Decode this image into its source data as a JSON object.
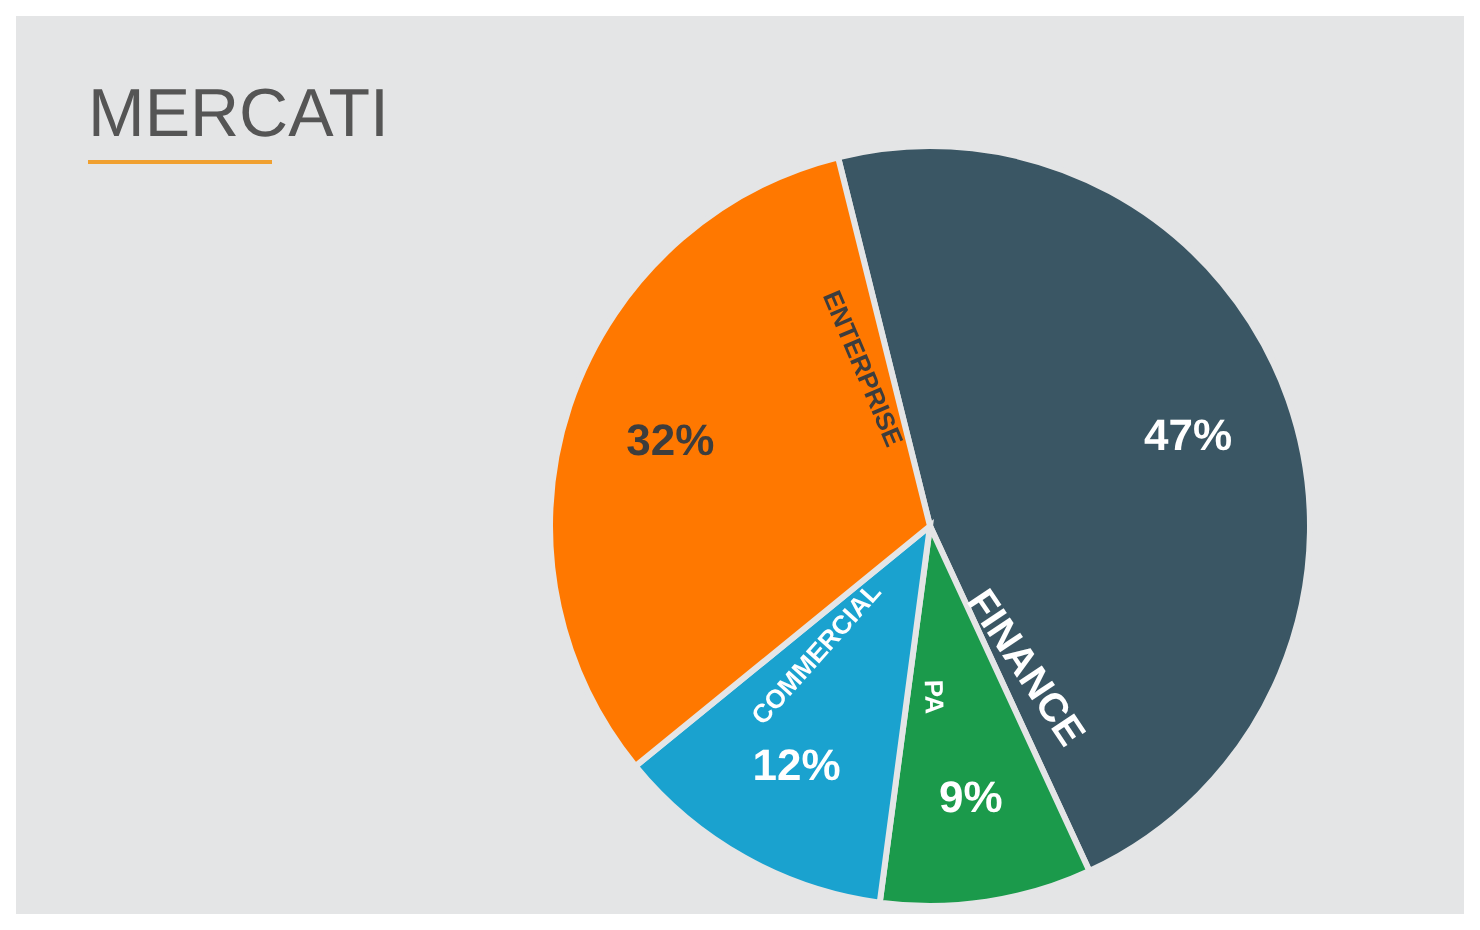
{
  "chart_data": {
    "type": "pie",
    "title": "MERCATI",
    "categories": [
      "FINANCE",
      "PA",
      "COMMERCIAL",
      "ENTERPRISE"
    ],
    "values": [
      47,
      9,
      12,
      32
    ],
    "value_labels": [
      "47%",
      "9%",
      "12%",
      "32%"
    ],
    "colors": [
      "#3a5664",
      "#1b9a4b",
      "#1aa2cf",
      "#ff7800"
    ],
    "legend": false
  }
}
